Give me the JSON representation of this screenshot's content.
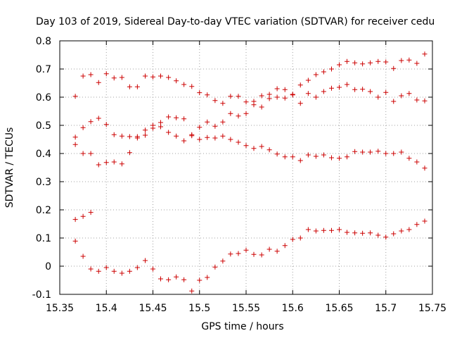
{
  "chart_data": {
    "type": "scatter",
    "title": "Day 103 of 2019, Sidereal Day-to-day VTEC variation (SDTVAR) for receiver cedu",
    "xlabel": "GPS time / hours",
    "ylabel": "SDTVAR / TECUs",
    "xlim": [
      15.35,
      15.75
    ],
    "ylim": [
      -0.1,
      0.8
    ],
    "xticks": [
      15.35,
      15.4,
      15.45,
      15.5,
      15.55,
      15.6,
      15.65,
      15.7,
      15.75
    ],
    "xtick_labels": [
      "15.35",
      "15.4",
      "15.45",
      "15.5",
      "15.55",
      "15.6",
      "15.65",
      "15.7",
      "15.75"
    ],
    "yticks": [
      -0.1,
      0,
      0.1,
      0.2,
      0.3,
      0.4,
      0.5,
      0.6,
      0.7,
      0.8
    ],
    "ytick_labels": [
      "-0.1",
      "0",
      "0.1",
      "0.2",
      "0.3",
      "0.4",
      "0.5",
      "0.6",
      "0.7",
      "0.8"
    ],
    "grid": true,
    "marker": "+",
    "color": "#cc0000",
    "points": [
      [
        15.3667,
        0.603
      ],
      [
        15.3667,
        0.458
      ],
      [
        15.3667,
        0.432
      ],
      [
        15.3667,
        0.166
      ],
      [
        15.3667,
        0.089
      ],
      [
        15.375,
        0.675
      ],
      [
        15.375,
        0.492
      ],
      [
        15.375,
        0.4
      ],
      [
        15.375,
        0.177
      ],
      [
        15.375,
        0.035
      ],
      [
        15.3833,
        0.68
      ],
      [
        15.3833,
        0.513
      ],
      [
        15.3833,
        0.4
      ],
      [
        15.3833,
        0.191
      ],
      [
        15.3833,
        -0.01
      ],
      [
        15.3917,
        0.652
      ],
      [
        15.3917,
        0.525
      ],
      [
        15.3917,
        0.36
      ],
      [
        15.3917,
        -0.018
      ],
      [
        15.4,
        0.683
      ],
      [
        15.4,
        0.503
      ],
      [
        15.4,
        0.368
      ],
      [
        15.4,
        -0.005
      ],
      [
        15.4083,
        0.668
      ],
      [
        15.4083,
        0.467
      ],
      [
        15.4083,
        0.37
      ],
      [
        15.4083,
        -0.018
      ],
      [
        15.4167,
        0.67
      ],
      [
        15.4167,
        0.462
      ],
      [
        15.4167,
        0.363
      ],
      [
        15.4167,
        -0.025
      ],
      [
        15.425,
        0.637
      ],
      [
        15.425,
        0.46
      ],
      [
        15.425,
        0.403
      ],
      [
        15.425,
        -0.018
      ],
      [
        15.4333,
        0.637
      ],
      [
        15.4333,
        0.46
      ],
      [
        15.4333,
        0.455
      ],
      [
        15.4333,
        -0.005
      ],
      [
        15.4417,
        0.675
      ],
      [
        15.4417,
        0.483
      ],
      [
        15.4417,
        0.465
      ],
      [
        15.4417,
        0.02
      ],
      [
        15.45,
        0.672
      ],
      [
        15.45,
        0.5
      ],
      [
        15.45,
        0.49
      ],
      [
        15.45,
        -0.01
      ],
      [
        15.4583,
        0.675
      ],
      [
        15.4583,
        0.51
      ],
      [
        15.4583,
        0.495
      ],
      [
        15.4583,
        -0.045
      ],
      [
        15.4667,
        0.67
      ],
      [
        15.4667,
        0.53
      ],
      [
        15.4667,
        0.475
      ],
      [
        15.4667,
        -0.048
      ],
      [
        15.475,
        0.658
      ],
      [
        15.475,
        0.527
      ],
      [
        15.475,
        0.462
      ],
      [
        15.475,
        -0.038
      ],
      [
        15.4833,
        0.645
      ],
      [
        15.4833,
        0.523
      ],
      [
        15.4833,
        0.445
      ],
      [
        15.4833,
        -0.048
      ],
      [
        15.4917,
        0.638
      ],
      [
        15.4917,
        0.467
      ],
      [
        15.4917,
        0.463
      ],
      [
        15.4917,
        -0.088
      ],
      [
        15.5,
        0.616
      ],
      [
        15.5,
        0.493
      ],
      [
        15.5,
        0.45
      ],
      [
        15.5,
        -0.05
      ],
      [
        15.5083,
        0.608
      ],
      [
        15.5083,
        0.512
      ],
      [
        15.5083,
        0.457
      ],
      [
        15.5083,
        -0.04
      ],
      [
        15.5167,
        0.588
      ],
      [
        15.5167,
        0.497
      ],
      [
        15.5167,
        0.455
      ],
      [
        15.5167,
        -0.003
      ],
      [
        15.525,
        0.578
      ],
      [
        15.525,
        0.512
      ],
      [
        15.525,
        0.462
      ],
      [
        15.525,
        0.018
      ],
      [
        15.5333,
        0.603
      ],
      [
        15.5333,
        0.542
      ],
      [
        15.5333,
        0.45
      ],
      [
        15.5333,
        0.043
      ],
      [
        15.5417,
        0.603
      ],
      [
        15.5417,
        0.533
      ],
      [
        15.5417,
        0.44
      ],
      [
        15.5417,
        0.045
      ],
      [
        15.55,
        0.583
      ],
      [
        15.55,
        0.542
      ],
      [
        15.55,
        0.428
      ],
      [
        15.55,
        0.057
      ],
      [
        15.5583,
        0.585
      ],
      [
        15.5583,
        0.573
      ],
      [
        15.5583,
        0.418
      ],
      [
        15.5583,
        0.042
      ],
      [
        15.5667,
        0.605
      ],
      [
        15.5667,
        0.565
      ],
      [
        15.5667,
        0.425
      ],
      [
        15.5667,
        0.04
      ],
      [
        15.575,
        0.61
      ],
      [
        15.575,
        0.595
      ],
      [
        15.575,
        0.413
      ],
      [
        15.575,
        0.06
      ],
      [
        15.5833,
        0.63
      ],
      [
        15.5833,
        0.6
      ],
      [
        15.5833,
        0.398
      ],
      [
        15.5833,
        0.053
      ],
      [
        15.5917,
        0.627
      ],
      [
        15.5917,
        0.597
      ],
      [
        15.5917,
        0.388
      ],
      [
        15.5917,
        0.073
      ],
      [
        15.6,
        0.61
      ],
      [
        15.6,
        0.608
      ],
      [
        15.6,
        0.388
      ],
      [
        15.6,
        0.095
      ],
      [
        15.6083,
        0.643
      ],
      [
        15.6083,
        0.578
      ],
      [
        15.6083,
        0.375
      ],
      [
        15.6083,
        0.1
      ],
      [
        15.6167,
        0.66
      ],
      [
        15.6167,
        0.613
      ],
      [
        15.6167,
        0.395
      ],
      [
        15.6167,
        0.13
      ],
      [
        15.625,
        0.68
      ],
      [
        15.625,
        0.6
      ],
      [
        15.625,
        0.39
      ],
      [
        15.625,
        0.125
      ],
      [
        15.6333,
        0.69
      ],
      [
        15.6333,
        0.62
      ],
      [
        15.6333,
        0.395
      ],
      [
        15.6333,
        0.127
      ],
      [
        15.6417,
        0.7
      ],
      [
        15.6417,
        0.632
      ],
      [
        15.6417,
        0.385
      ],
      [
        15.6417,
        0.127
      ],
      [
        15.65,
        0.715
      ],
      [
        15.65,
        0.635
      ],
      [
        15.65,
        0.383
      ],
      [
        15.65,
        0.13
      ],
      [
        15.6583,
        0.727
      ],
      [
        15.6583,
        0.645
      ],
      [
        15.6583,
        0.388
      ],
      [
        15.6583,
        0.12
      ],
      [
        15.6667,
        0.722
      ],
      [
        15.6667,
        0.627
      ],
      [
        15.6667,
        0.407
      ],
      [
        15.6667,
        0.118
      ],
      [
        15.675,
        0.718
      ],
      [
        15.675,
        0.628
      ],
      [
        15.675,
        0.405
      ],
      [
        15.675,
        0.117
      ],
      [
        15.6833,
        0.722
      ],
      [
        15.6833,
        0.62
      ],
      [
        15.6833,
        0.405
      ],
      [
        15.6833,
        0.118
      ],
      [
        15.6917,
        0.727
      ],
      [
        15.6917,
        0.6
      ],
      [
        15.6917,
        0.408
      ],
      [
        15.6917,
        0.11
      ],
      [
        15.7,
        0.725
      ],
      [
        15.7,
        0.617
      ],
      [
        15.7,
        0.4
      ],
      [
        15.7,
        0.103
      ],
      [
        15.7083,
        0.702
      ],
      [
        15.7083,
        0.585
      ],
      [
        15.7083,
        0.4
      ],
      [
        15.7083,
        0.115
      ],
      [
        15.7167,
        0.73
      ],
      [
        15.7167,
        0.605
      ],
      [
        15.7167,
        0.405
      ],
      [
        15.7167,
        0.125
      ],
      [
        15.725,
        0.732
      ],
      [
        15.725,
        0.613
      ],
      [
        15.725,
        0.383
      ],
      [
        15.725,
        0.13
      ],
      [
        15.7333,
        0.72
      ],
      [
        15.7333,
        0.59
      ],
      [
        15.7333,
        0.37
      ],
      [
        15.7333,
        0.148
      ],
      [
        15.7417,
        0.753
      ],
      [
        15.7417,
        0.587
      ],
      [
        15.7417,
        0.348
      ],
      [
        15.7417,
        0.16
      ]
    ]
  }
}
